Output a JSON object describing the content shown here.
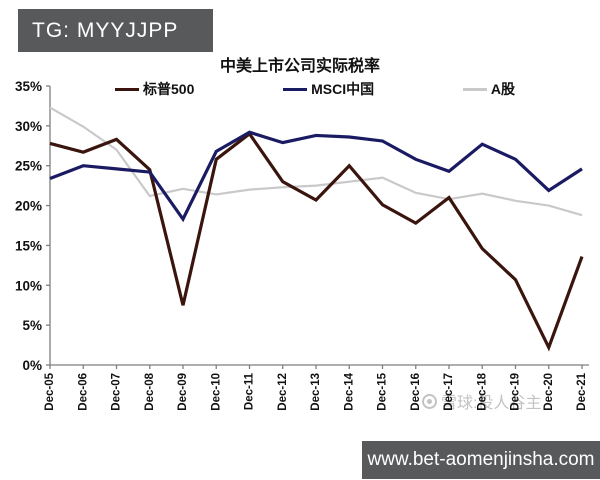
{
  "badge": {
    "text": "TG: MYYJJPP"
  },
  "watermark": {
    "text": "雪球:投人谷主"
  },
  "footer_banner": {
    "url_text": "www.bet-aomenjinsha.com"
  },
  "chart_data": {
    "type": "line",
    "title": "中美上市公司实际税率",
    "categories": [
      "Dec-05",
      "Dec-06",
      "Dec-07",
      "Dec-08",
      "Dec-09",
      "Dec-10",
      "Dec-11",
      "Dec-12",
      "Dec-13",
      "Dec-14",
      "Dec-15",
      "Dec-16",
      "Dec-17",
      "Dec-18",
      "Dec-19",
      "Dec-20",
      "Dec-21"
    ],
    "series": [
      {
        "name": "标普500",
        "color": "#3a150d",
        "values": [
          27.8,
          26.7,
          28.3,
          24.5,
          7.5,
          25.8,
          29.0,
          23.0,
          20.7,
          25.0,
          20.1,
          17.8,
          21.0,
          14.6,
          10.7,
          2.2,
          13.6
        ]
      },
      {
        "name": "MSCI中国",
        "color": "#1b1b64",
        "values": [
          23.4,
          25.0,
          24.6,
          24.2,
          18.3,
          26.8,
          29.2,
          27.9,
          28.8,
          28.6,
          28.1,
          25.8,
          24.3,
          27.7,
          25.8,
          21.9,
          24.6
        ]
      },
      {
        "name": "A股",
        "color": "#c9c9c9",
        "values": [
          32.3,
          29.9,
          27.0,
          21.2,
          22.1,
          21.4,
          22.0,
          22.3,
          22.5,
          23.0,
          23.5,
          21.6,
          20.8,
          21.5,
          20.6,
          20.0,
          18.8
        ]
      }
    ],
    "ylim": [
      0,
      35
    ],
    "ytick_step": 5,
    "ytick_labels": [
      "0%",
      "5%",
      "10%",
      "15%",
      "20%",
      "25%",
      "30%",
      "35%"
    ],
    "legend_position": "top",
    "grid": false,
    "axis_color": "#7f7f7f",
    "label_color": "#111111"
  }
}
